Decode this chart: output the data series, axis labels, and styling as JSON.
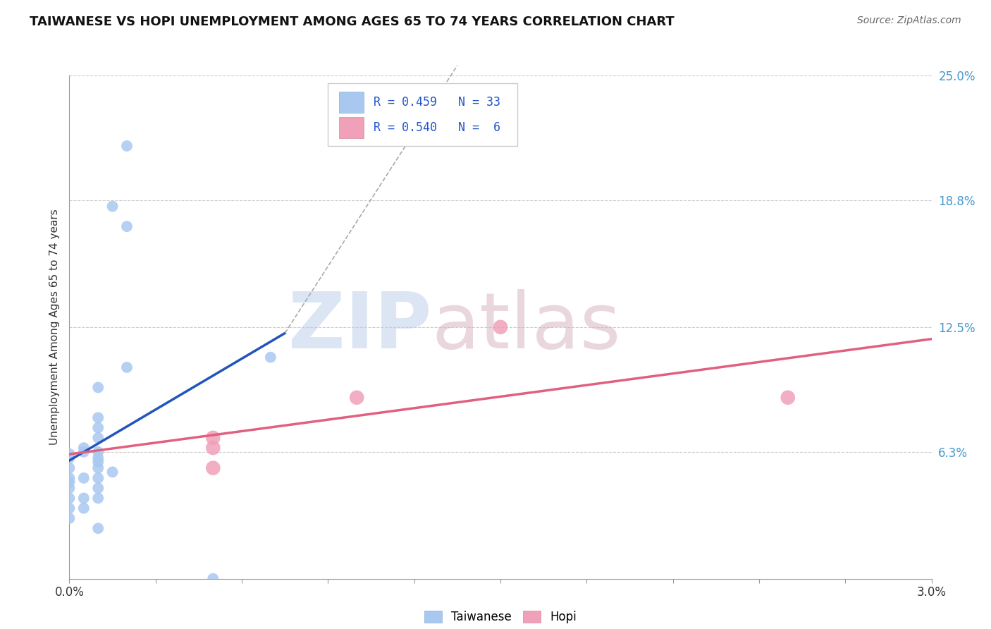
{
  "title": "TAIWANESE VS HOPI UNEMPLOYMENT AMONG AGES 65 TO 74 YEARS CORRELATION CHART",
  "source": "Source: ZipAtlas.com",
  "ylabel": "Unemployment Among Ages 65 to 74 years",
  "xlim": [
    0.0,
    0.03
  ],
  "ylim": [
    0.0,
    0.25
  ],
  "ytick_labels": [
    "6.3%",
    "12.5%",
    "18.8%",
    "25.0%"
  ],
  "ytick_vals": [
    0.063,
    0.125,
    0.188,
    0.25
  ],
  "taiwanese_x": [
    0.002,
    0.002,
    0.0015,
    0.001,
    0.001,
    0.001,
    0.0005,
    0.001,
    0.001,
    0.0,
    0.0,
    0.0,
    0.0,
    0.0,
    0.001,
    0.0015,
    0.001,
    0.0005,
    0.0,
    0.001,
    0.001,
    0.0005,
    0.0,
    0.0005,
    0.001,
    0.001,
    0.0,
    0.0,
    0.001,
    0.0005,
    0.002,
    0.007,
    0.005
  ],
  "taiwanese_y": [
    0.215,
    0.175,
    0.185,
    0.095,
    0.08,
    0.075,
    0.065,
    0.07,
    0.063,
    0.062,
    0.06,
    0.055,
    0.05,
    0.045,
    0.058,
    0.053,
    0.05,
    0.05,
    0.048,
    0.06,
    0.055,
    0.04,
    0.04,
    0.035,
    0.045,
    0.04,
    0.035,
    0.03,
    0.025,
    0.063,
    0.105,
    0.11,
    0.0
  ],
  "hopi_x": [
    0.005,
    0.015,
    0.01,
    0.025,
    0.005,
    0.005
  ],
  "hopi_y": [
    0.07,
    0.125,
    0.09,
    0.09,
    0.065,
    0.055
  ],
  "taiwanese_color": "#a8c8f0",
  "hopi_color": "#f0a0b8",
  "taiwanese_line_color": "#2255bb",
  "hopi_line_color": "#e06080",
  "taiwanese_R": "0.459",
  "taiwanese_N": "33",
  "hopi_R": "0.540",
  "hopi_N": " 6",
  "legend_label_taiwanese": "Taiwanese",
  "legend_label_hopi": "Hopi",
  "background_color": "#ffffff",
  "tw_line_x_end": 0.0075,
  "dashed_line_color": "#aaaaaa"
}
